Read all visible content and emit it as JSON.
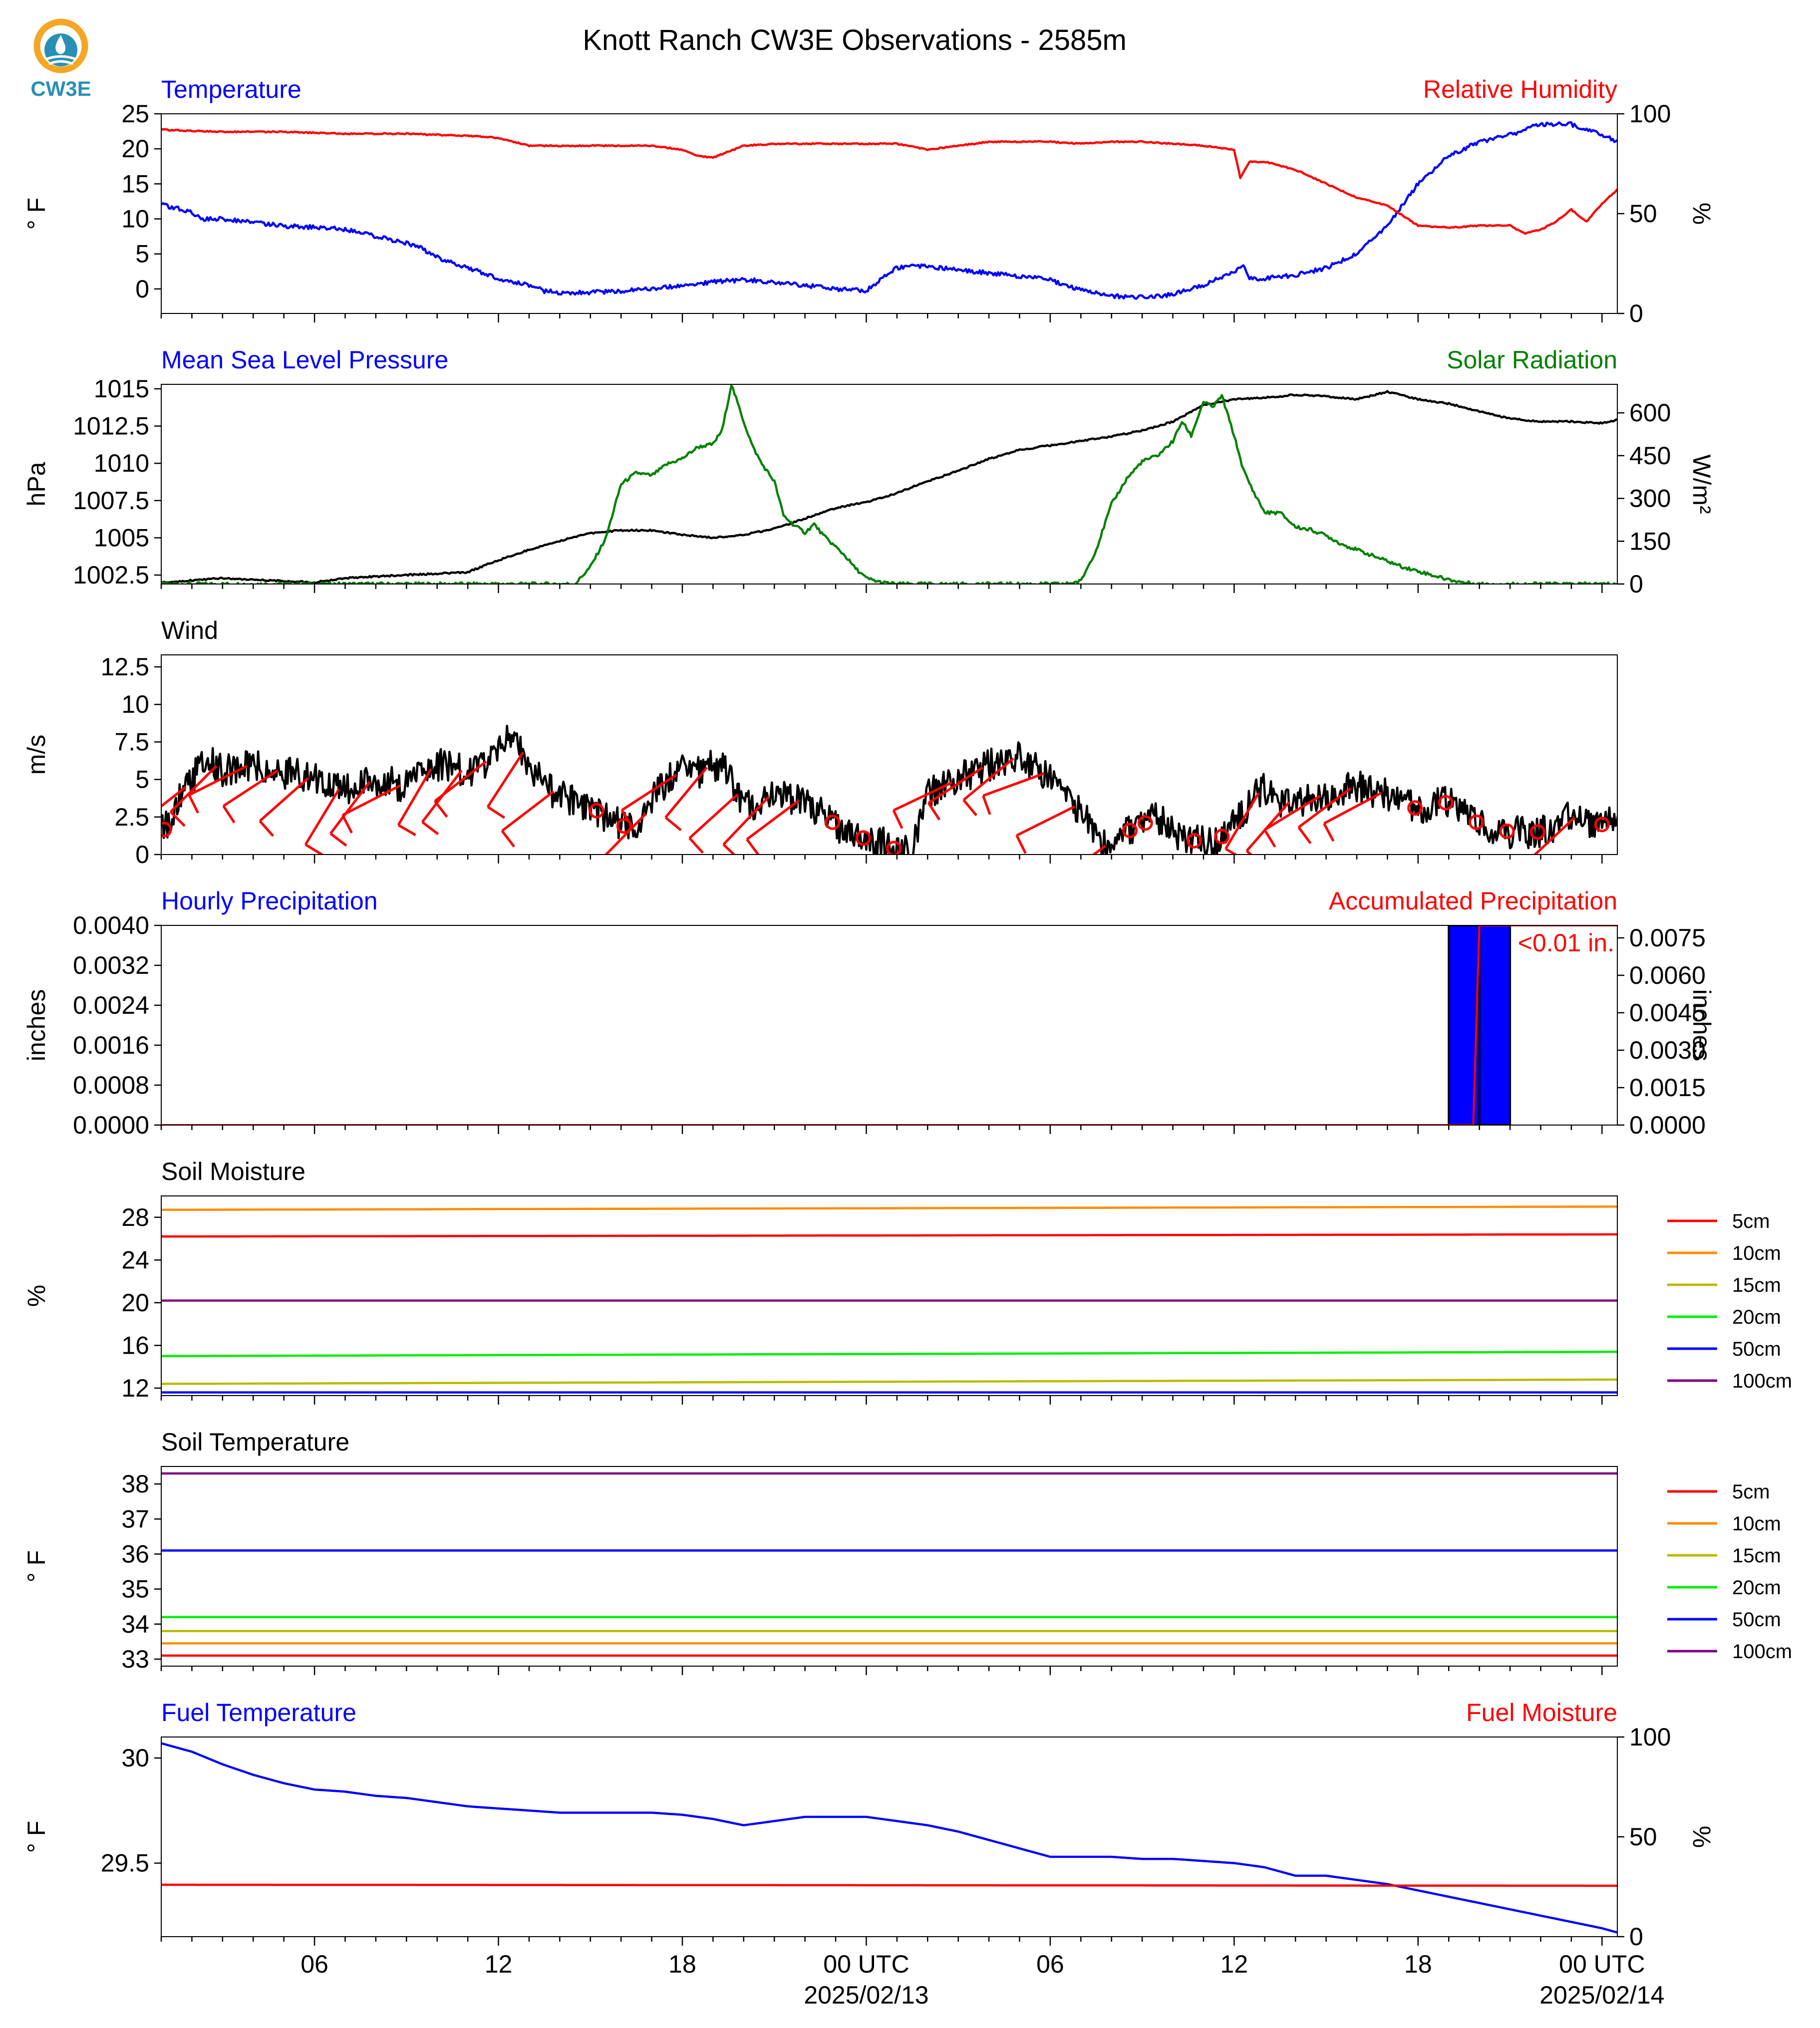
{
  "title": "Knott Ranch CW3E Observations - 2585m",
  "logo": {
    "text": "CW3E",
    "color": "#2a8fb5",
    "ring": "#f5a623",
    "icon": "cw3e-logo-icon"
  },
  "colors": {
    "blue": "#0000ff",
    "red": "#ff0000",
    "green": "#008000",
    "black": "#000000",
    "orange": "#ff8c00",
    "olive": "#bbbb00",
    "lime": "#00ee00",
    "purple": "#800080"
  },
  "time_axis": {
    "range_hours": [
      0,
      47.5
    ],
    "major_ticks": [
      {
        "h": 5,
        "label": "06"
      },
      {
        "h": 11,
        "label": "12"
      },
      {
        "h": 17,
        "label": "18"
      },
      {
        "h": 23,
        "label": "00 UTC"
      },
      {
        "h": 29,
        "label": "06"
      },
      {
        "h": 35,
        "label": "12"
      },
      {
        "h": 41,
        "label": "18"
      },
      {
        "h": 47,
        "label": "00 UTC"
      }
    ],
    "date_labels": [
      {
        "h": 23,
        "label": "2025/02/13"
      },
      {
        "h": 47,
        "label": "2025/02/14"
      }
    ]
  },
  "chart_data": [
    {
      "id": "temp_rh",
      "type": "line",
      "title_left": "Temperature",
      "title_right": "Relative Humidity",
      "ylabel": "° F",
      "ylabel_right": "%",
      "ylim": [
        -3.5,
        25
      ],
      "yticks": [
        0,
        5,
        10,
        15,
        20,
        25
      ],
      "ylim_right": [
        0,
        100
      ],
      "yticks_right": [
        0,
        50,
        100
      ],
      "series": [
        {
          "axis": "left",
          "color": "blue",
          "x": [
            0,
            1,
            1.3,
            2,
            3,
            4,
            5,
            6,
            7,
            8,
            8.5,
            9,
            10,
            11,
            12,
            12.5,
            13,
            14,
            15,
            16,
            17,
            18,
            19,
            20,
            21,
            22,
            23,
            24,
            24.5,
            25,
            26,
            27,
            28,
            29,
            30,
            31,
            32,
            33,
            34,
            35,
            35.3,
            35.5,
            36,
            37,
            38,
            39,
            40,
            41,
            42,
            43,
            44,
            45,
            46,
            47,
            47.5
          ],
          "values": [
            12,
            11,
            10,
            10,
            9.5,
            9,
            8.8,
            8.5,
            7.5,
            6.5,
            5.8,
            4.5,
            3,
            1.5,
            0.5,
            -0.3,
            -0.5,
            -0.5,
            -0.3,
            0,
            0.5,
            1,
            1.3,
            1,
            0.5,
            0,
            -0.2,
            3,
            3.2,
            3.2,
            2.7,
            2.3,
            1.8,
            1.3,
            -0.2,
            -1,
            -1.2,
            -0.8,
            0.5,
            2.5,
            3.5,
            1.5,
            1.5,
            2,
            3,
            5,
            9,
            15,
            19,
            21,
            22,
            23.5,
            23.5,
            22,
            21
          ]
        },
        {
          "axis": "right",
          "color": "red",
          "x": [
            0,
            2,
            4,
            6,
            8,
            10,
            11,
            12,
            14,
            16,
            17,
            17.5,
            18,
            19,
            20,
            21,
            22,
            23,
            24,
            25,
            26,
            27,
            28,
            29,
            30,
            31,
            32,
            33,
            34,
            35,
            35.2,
            35.5,
            36,
            37,
            38,
            39,
            40,
            40.5,
            41,
            42,
            43,
            44,
            44.5,
            45,
            45.5,
            46,
            46.5,
            47,
            47.5
          ],
          "values": [
            92,
            91,
            91,
            90,
            90,
            89,
            88,
            84,
            84,
            84,
            82,
            79,
            78,
            84,
            85,
            85,
            85,
            85,
            85,
            82,
            84,
            86,
            86,
            86,
            85,
            86,
            86,
            85,
            84,
            82,
            68,
            76,
            76,
            72,
            65,
            58,
            54,
            49,
            44,
            43,
            44,
            44,
            40,
            42,
            46,
            52,
            46,
            55,
            62
          ]
        }
      ]
    },
    {
      "id": "mslp_solar",
      "type": "line",
      "title_left": "Mean Sea Level Pressure",
      "title_right": "Solar Radiation",
      "ylabel": "hPa",
      "ylabel_right": "W/m²",
      "ylim": [
        1001.9,
        1015.3
      ],
      "yticks": [
        1002.5,
        1005.0,
        1007.5,
        1010.0,
        1012.5,
        1015.0
      ],
      "ylim_right": [
        0,
        700
      ],
      "yticks_right": [
        0,
        150,
        300,
        450,
        600
      ],
      "series": [
        {
          "axis": "left",
          "color": "black",
          "x": [
            0,
            2,
            3,
            5,
            6,
            7,
            8,
            9,
            10,
            11,
            12,
            13,
            14,
            15,
            16,
            17,
            18,
            19,
            20,
            21,
            22,
            23,
            24,
            25,
            26,
            27,
            28,
            29,
            30,
            31,
            32,
            33,
            34,
            35,
            36,
            37,
            38,
            39,
            40,
            41,
            42,
            43,
            44,
            45,
            46,
            47,
            47.5
          ],
          "values": [
            1002.0,
            1002.3,
            1002.2,
            1002.0,
            1002.3,
            1002.4,
            1002.5,
            1002.6,
            1002.7,
            1003.5,
            1004.2,
            1004.8,
            1005.3,
            1005.5,
            1005.5,
            1005.2,
            1005.0,
            1005.2,
            1005.6,
            1006.3,
            1007.0,
            1007.4,
            1008.0,
            1008.8,
            1009.5,
            1010.3,
            1010.9,
            1011.2,
            1011.5,
            1011.8,
            1012.2,
            1012.8,
            1013.9,
            1014.3,
            1014.4,
            1014.6,
            1014.5,
            1014.3,
            1014.8,
            1014.3,
            1014.0,
            1013.5,
            1013.0,
            1012.8,
            1012.8,
            1012.7,
            1012.9
          ]
        },
        {
          "axis": "right",
          "color": "green",
          "x": [
            0,
            13.5,
            14,
            14.5,
            15,
            15.5,
            16,
            16.5,
            17,
            17.5,
            18,
            18.3,
            18.6,
            19,
            19.3,
            19.6,
            20,
            20.3,
            20.6,
            21,
            21.3,
            21.6,
            22,
            22.3,
            22.6,
            23,
            23.5,
            24,
            29,
            29.5,
            30,
            30.5,
            31,
            31.5,
            32,
            32.5,
            33,
            33.3,
            33.6,
            34,
            34.3,
            34.6,
            35,
            35.3,
            35.6,
            36,
            36.5,
            37,
            37.5,
            38,
            38.5,
            39,
            39.5,
            40,
            40.5,
            41,
            41.5,
            42,
            42.5,
            43,
            43.5,
            44,
            44.5,
            45,
            45.5,
            46,
            46.5,
            47,
            47.5
          ],
          "values": [
            0,
            0,
            60,
            160,
            350,
            390,
            380,
            420,
            440,
            480,
            490,
            540,
            700,
            570,
            480,
            420,
            360,
            240,
            210,
            180,
            210,
            170,
            130,
            100,
            60,
            20,
            5,
            0,
            0,
            0,
            10,
            120,
            280,
            370,
            430,
            450,
            500,
            570,
            520,
            640,
            620,
            660,
            520,
            400,
            330,
            250,
            250,
            200,
            190,
            170,
            140,
            120,
            100,
            80,
            60,
            45,
            30,
            15,
            5,
            0,
            0,
            0,
            0,
            0,
            0,
            0,
            0,
            0,
            0
          ]
        }
      ]
    },
    {
      "id": "wind",
      "type": "line",
      "title_left": "Wind",
      "ylabel": "m/s",
      "ylim": [
        0,
        13.3
      ],
      "yticks": [
        0.0,
        2.5,
        5.0,
        7.5,
        10.0,
        12.5
      ],
      "series": [
        {
          "color": "black",
          "x": [
            0,
            0.3,
            0.6,
            1,
            1.5,
            2,
            3,
            4,
            5,
            6,
            7,
            8,
            9,
            10,
            10.5,
            11,
            11.5,
            12,
            12.5,
            13,
            13.5,
            14,
            14.5,
            15,
            15.5,
            16,
            16.5,
            17,
            17.5,
            18,
            18.5,
            19,
            19.5,
            20,
            21,
            22,
            23,
            23.5,
            24,
            24.5,
            25,
            26,
            27,
            28,
            28.5,
            29,
            29.5,
            30,
            30.5,
            31,
            31.5,
            32,
            32.5,
            33,
            33.5,
            34,
            34.5,
            35,
            35.5,
            36,
            36.5,
            37,
            38,
            39,
            40,
            41,
            42,
            43,
            44,
            45,
            46,
            47,
            47.5
          ],
          "values": [
            1.5,
            2,
            4,
            5,
            6.5,
            5.5,
            6,
            5.5,
            5,
            4.2,
            5,
            4.5,
            6,
            5.5,
            6,
            7,
            8,
            6,
            4.5,
            4,
            3.5,
            3.2,
            2.5,
            2,
            1.5,
            3.5,
            5,
            5.5,
            5.5,
            6,
            5.5,
            3,
            3.5,
            4,
            3.5,
            2,
            1,
            0.8,
            0.3,
            0.5,
            4,
            5,
            6,
            6.5,
            6,
            5,
            3.5,
            3,
            1,
            0.3,
            1.5,
            2,
            2.5,
            1.5,
            1,
            0.8,
            1,
            2,
            3.5,
            4.5,
            3.5,
            3.5,
            4,
            4.5,
            4,
            3,
            3.5,
            2,
            1.5,
            1.5,
            2.5,
            2,
            2.5
          ]
        }
      ],
      "barbs": {
        "color": "red",
        "calm_times": [
          0.1,
          14.2,
          15.1,
          21.9,
          22.9,
          23.9,
          31.6,
          32.1,
          33.7,
          34.6,
          40.9,
          41.9,
          42.9,
          43.9,
          44.9,
          47
        ],
        "times": [
          0.8,
          1.8,
          2.8,
          3.8,
          4.8,
          5.8,
          6.8,
          7.8,
          8.8,
          9.8,
          10.6,
          11.8,
          12.8,
          15.8,
          16.8,
          17.8,
          18.8,
          19.8,
          20.8,
          25.8,
          26.8,
          27.8,
          28.8,
          29.8,
          30.8,
          35.8,
          36.8,
          37.8,
          38.8,
          39.8,
          46.1
        ]
      }
    },
    {
      "id": "precip",
      "type": "bar",
      "title_left": "Hourly Precipitation",
      "title_right": "Accumulated Precipitation",
      "ylabel": "inches",
      "ylabel_right": "inches",
      "ylim": [
        0,
        0.004
      ],
      "yticks": [
        "0.0000",
        "0.0008",
        "0.0016",
        "0.0024",
        "0.0032",
        "0.0040"
      ],
      "ylim_right": [
        0,
        0.008
      ],
      "yticks_right": [
        "0.0000",
        "0.0015",
        "0.0030",
        "0.0045",
        "0.0060",
        "0.0075"
      ],
      "bars": [
        {
          "x0": 42,
          "x1": 43,
          "value": 0.004
        },
        {
          "x0": 43,
          "x1": 44,
          "value": 0.004
        }
      ],
      "accum": {
        "x": [
          0,
          42.8,
          42.9,
          43,
          47.5
        ],
        "values": [
          0,
          0,
          0.004,
          0.008,
          0.008
        ]
      },
      "annotation": "<0.01 in."
    },
    {
      "id": "soil_moisture",
      "type": "line",
      "title_left": "Soil Moisture",
      "ylabel": "%",
      "ylim": [
        11.3,
        30
      ],
      "yticks": [
        12,
        16,
        20,
        24,
        28
      ],
      "series": [
        {
          "name": "5cm",
          "color": "red",
          "values": [
            26.2,
            26.4
          ]
        },
        {
          "name": "10cm",
          "color": "orange",
          "values": [
            28.7,
            29.0
          ]
        },
        {
          "name": "15cm",
          "color": "olive",
          "values": [
            12.4,
            12.8
          ]
        },
        {
          "name": "20cm",
          "color": "lime",
          "values": [
            15.0,
            15.4
          ]
        },
        {
          "name": "50cm",
          "color": "blue",
          "values": [
            11.6,
            11.6
          ]
        },
        {
          "name": "100cm",
          "color": "purple",
          "values": [
            20.2,
            20.2
          ]
        }
      ]
    },
    {
      "id": "soil_temp",
      "type": "line",
      "title_left": "Soil Temperature",
      "ylabel": "° F",
      "ylim": [
        32.8,
        38.5
      ],
      "yticks": [
        33,
        34,
        35,
        36,
        37,
        38
      ],
      "series": [
        {
          "name": "5cm",
          "color": "red",
          "values": [
            33.1,
            33.1
          ]
        },
        {
          "name": "10cm",
          "color": "orange",
          "values": [
            33.45,
            33.45
          ]
        },
        {
          "name": "15cm",
          "color": "olive",
          "values": [
            33.8,
            33.8
          ]
        },
        {
          "name": "20cm",
          "color": "lime",
          "values": [
            34.2,
            34.2
          ]
        },
        {
          "name": "50cm",
          "color": "blue",
          "values": [
            36.1,
            36.1
          ]
        },
        {
          "name": "100cm",
          "color": "purple",
          "values": [
            38.3,
            38.3
          ]
        }
      ]
    },
    {
      "id": "fuel",
      "type": "line",
      "title_left": "Fuel Temperature",
      "title_right": "Fuel Moisture",
      "ylabel": "° F",
      "ylabel_right": "%",
      "ylim": [
        29.15,
        30.1
      ],
      "yticks": [
        29.5,
        30.0
      ],
      "ylim_right": [
        0,
        100
      ],
      "yticks_right": [
        0,
        50,
        100
      ],
      "series": [
        {
          "axis": "left",
          "color": "blue",
          "x": [
            0,
            1,
            2,
            3,
            4,
            5,
            6,
            7,
            8,
            9,
            10,
            11,
            12,
            13,
            14,
            15,
            16,
            17,
            18,
            19,
            20,
            21,
            22,
            23,
            24,
            25,
            26,
            27,
            28,
            29,
            30,
            31,
            32,
            33,
            34,
            35,
            36,
            37,
            38,
            39,
            40,
            41,
            42,
            43,
            44,
            45,
            46,
            47,
            47.5
          ],
          "values": [
            30.07,
            30.03,
            29.97,
            29.92,
            29.88,
            29.85,
            29.84,
            29.82,
            29.81,
            29.79,
            29.77,
            29.76,
            29.75,
            29.74,
            29.74,
            29.74,
            29.74,
            29.73,
            29.71,
            29.68,
            29.7,
            29.72,
            29.72,
            29.72,
            29.7,
            29.68,
            29.65,
            29.61,
            29.57,
            29.53,
            29.53,
            29.53,
            29.52,
            29.52,
            29.51,
            29.5,
            29.48,
            29.44,
            29.44,
            29.42,
            29.4,
            29.37,
            29.34,
            29.31,
            29.28,
            29.25,
            29.22,
            29.19,
            29.17
          ]
        },
        {
          "axis": "right",
          "color": "red",
          "x": [
            0,
            47.5
          ],
          "values": [
            26,
            25.5
          ]
        }
      ]
    }
  ]
}
